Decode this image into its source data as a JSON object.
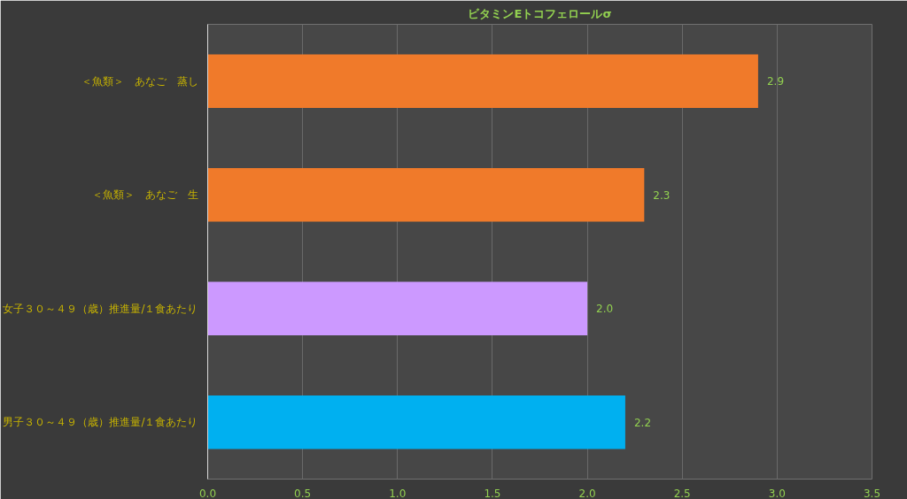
{
  "chart_data": {
    "type": "bar",
    "orientation": "horizontal",
    "title": "ビタミンEトコフェロールσ",
    "categories": [
      "＜魚類＞　あなご　蒸し",
      "＜魚類＞　あなご　生",
      "女子３０～４９（歳）推進量/１食あたり",
      "男子３０～４９（歳）推進量/１食あたり"
    ],
    "values": [
      2.9,
      2.3,
      2.0,
      2.2
    ],
    "colors": [
      "#f07a2a",
      "#f07a2a",
      "#cc99ff",
      "#00b0f0"
    ],
    "xlim": [
      0,
      3.5
    ],
    "xticks": [
      {
        "value": 0,
        "label": "0.0"
      },
      {
        "value": 0.5,
        "label": "0.5"
      },
      {
        "value": 1,
        "label": "1.0"
      },
      {
        "value": 1.5,
        "label": "1.5"
      },
      {
        "value": 2,
        "label": "2.0"
      },
      {
        "value": 2.5,
        "label": "2.5"
      },
      {
        "value": 3,
        "label": "3.0"
      },
      {
        "value": 3.5,
        "label": "3.5"
      }
    ],
    "value_labels": [
      "2.9",
      "2.3",
      "2.0",
      "2.2"
    ],
    "grid": "x"
  }
}
